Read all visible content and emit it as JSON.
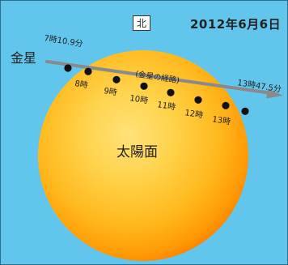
{
  "date": "2012年6月6日",
  "north_label": "北",
  "venus_label": "金星",
  "path_label": "(金星の経路)",
  "sun_label": "太陽面",
  "contact_start": "7時10.9分",
  "contact_end": "13時47.5分",
  "hour_marks": [
    "8時",
    "9時",
    "10時",
    "11時",
    "12時",
    "13時"
  ],
  "colors": {
    "sky": "#62c6ec",
    "frame": "#2a6e8c",
    "sun_core": "#ffd24a",
    "sun_edge": "#ff8c00",
    "path_line": "#8a8a8a",
    "venus_dot": "#111111"
  }
}
